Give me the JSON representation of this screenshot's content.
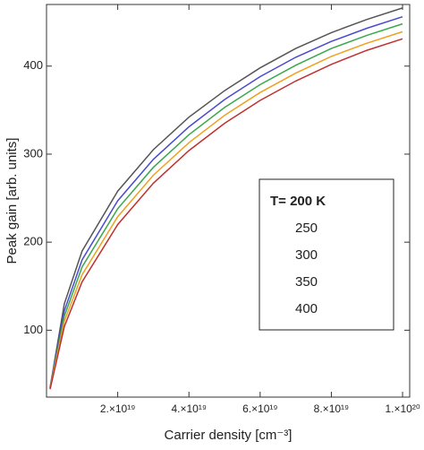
{
  "chart_data": {
    "type": "line",
    "x_label": "Carrier density [cm⁻³]",
    "y_label": "Peak gain [arb. units]",
    "x": [
      1e+18,
      5e+18,
      1e+19,
      2e+19,
      3e+19,
      4e+19,
      5e+19,
      6e+19,
      7e+19,
      8e+19,
      9e+19,
      1e+20
    ],
    "series": [
      {
        "name": "T= 200 K",
        "color": "#555555",
        "values": [
          35,
          130,
          190,
          258,
          305,
          342,
          372,
          398,
          420,
          438,
          453,
          466
        ]
      },
      {
        "name": "250",
        "color": "#4a4ad0",
        "values": [
          35,
          122,
          180,
          247,
          294,
          331,
          362,
          388,
          410,
          428,
          443,
          456
        ]
      },
      {
        "name": "300",
        "color": "#3aa84a",
        "values": [
          34,
          116,
          172,
          238,
          285,
          322,
          353,
          379,
          401,
          420,
          435,
          448
        ]
      },
      {
        "name": "350",
        "color": "#f0a020",
        "values": [
          34,
          110,
          163,
          229,
          276,
          313,
          344,
          370,
          392,
          411,
          426,
          439
        ]
      },
      {
        "name": "400",
        "color": "#c03030",
        "values": [
          33,
          104,
          155,
          220,
          267,
          304,
          335,
          361,
          383,
          402,
          418,
          431
        ]
      }
    ],
    "xlim": [
      0,
      1.02e+20
    ],
    "ylim": [
      24,
      470
    ],
    "xticks": [
      {
        "value": 2e+19,
        "label": "2.×10¹⁹"
      },
      {
        "value": 4e+19,
        "label": "4.×10¹⁹"
      },
      {
        "value": 6e+19,
        "label": "6.×10¹⁹"
      },
      {
        "value": 8e+19,
        "label": "8.×10¹⁹"
      },
      {
        "value": 1e+20,
        "label": "1.×10²⁰"
      }
    ],
    "yticks": [
      100,
      200,
      300,
      400
    ]
  }
}
